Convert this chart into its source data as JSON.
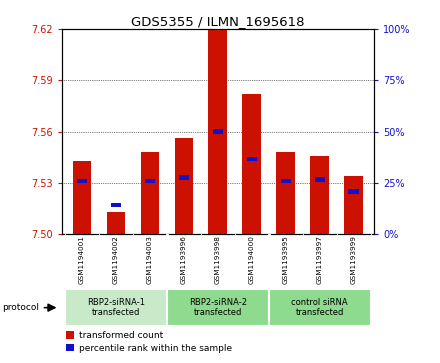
{
  "title": "GDS5355 / ILMN_1695618",
  "samples": [
    "GSM1194001",
    "GSM1194002",
    "GSM1194003",
    "GSM1193996",
    "GSM1193998",
    "GSM1194000",
    "GSM1193995",
    "GSM1193997",
    "GSM1193999"
  ],
  "red_values": [
    7.543,
    7.513,
    7.548,
    7.556,
    7.622,
    7.582,
    7.548,
    7.546,
    7.534
  ],
  "blue_values": [
    7.531,
    7.517,
    7.531,
    7.533,
    7.56,
    7.544,
    7.531,
    7.532,
    7.525
  ],
  "ylim_left": [
    7.5,
    7.62
  ],
  "yticks_left": [
    7.5,
    7.53,
    7.56,
    7.59,
    7.62
  ],
  "yticks_right_pct": [
    0,
    25,
    50,
    75,
    100
  ],
  "group_labels": [
    "RBP2-siRNA-1\ntransfected",
    "RBP2-siRNA-2\ntransfected",
    "control siRNA\ntransfected"
  ],
  "group_ranges": [
    [
      0,
      2
    ],
    [
      3,
      5
    ],
    [
      6,
      8
    ]
  ],
  "group_colors": [
    "#c8eac8",
    "#8eda8e",
    "#8eda8e"
  ],
  "bar_color": "#cc1100",
  "blue_color": "#1111cc",
  "bar_width": 0.55,
  "base_value": 7.5,
  "protocol_label": "protocol",
  "legend_red": "transformed count",
  "legend_blue": "percentile rank within the sample",
  "bg_color": "#ffffff",
  "sample_panel_color": "#c8c8c8",
  "grid_color": "#000000",
  "left_tick_color": "#cc1100",
  "right_tick_color": "#1111cc"
}
